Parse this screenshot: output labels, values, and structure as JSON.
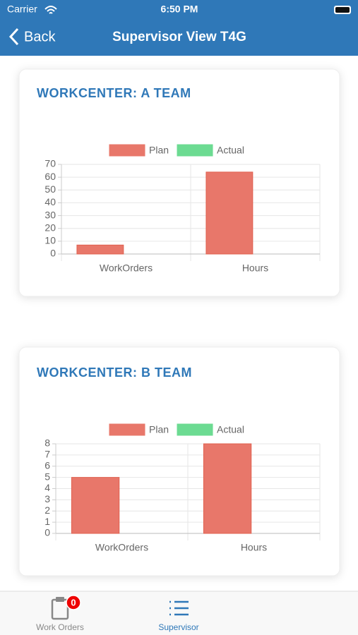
{
  "status_bar": {
    "carrier": "Carrier",
    "time": "6:50 PM"
  },
  "nav": {
    "back": "Back",
    "title": "Supervisor View T4G"
  },
  "chart_data": [
    {
      "type": "bar",
      "title": "WORKCENTER: A TEAM",
      "categories": [
        "WorkOrders",
        "Hours"
      ],
      "series": [
        {
          "name": "Plan",
          "color": "#e8776a",
          "values": [
            7,
            64
          ]
        },
        {
          "name": "Actual",
          "color": "#6cdb92",
          "values": [
            0,
            0
          ]
        }
      ],
      "ylim": [
        0,
        70
      ],
      "yticks": [
        0,
        10,
        20,
        30,
        40,
        50,
        60,
        70
      ],
      "grid": true,
      "legend": "top"
    },
    {
      "type": "bar",
      "title": "WORKCENTER: B TEAM",
      "categories": [
        "WorkOrders",
        "Hours"
      ],
      "series": [
        {
          "name": "Plan",
          "color": "#e8776a",
          "values": [
            5,
            8
          ]
        },
        {
          "name": "Actual",
          "color": "#6cdb92",
          "values": [
            0,
            0
          ]
        }
      ],
      "ylim": [
        0,
        8
      ],
      "yticks": [
        0,
        1,
        2,
        3,
        4,
        5,
        6,
        7,
        8
      ],
      "grid": true,
      "legend": "top"
    }
  ],
  "tabs": [
    {
      "label": "Work Orders",
      "badge": 0
    },
    {
      "label": "Supervisor"
    }
  ]
}
